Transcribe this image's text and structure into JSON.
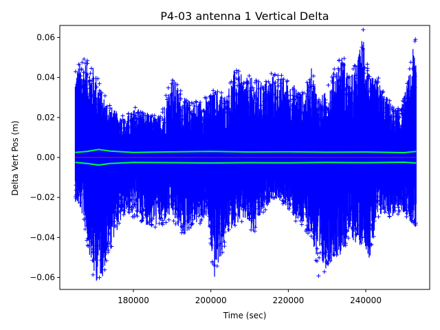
{
  "chart_data": {
    "type": "scatter",
    "title": "P4-03 antenna 1 Vertical Delta",
    "xlabel": "Time (sec)",
    "ylabel": "Delta Vert Pos (m)",
    "xlim": [
      161000,
      256500
    ],
    "ylim": [
      -0.066,
      0.066
    ],
    "x_ticks": [
      {
        "value": 180000,
        "label": "180000"
      },
      {
        "value": 200000,
        "label": "200000"
      },
      {
        "value": 220000,
        "label": "220000"
      },
      {
        "value": 240000,
        "label": "240000"
      }
    ],
    "y_ticks": [
      {
        "value": -0.06,
        "label": "−0.06"
      },
      {
        "value": -0.04,
        "label": "−0.04"
      },
      {
        "value": -0.02,
        "label": "−0.02"
      },
      {
        "value": 0.0,
        "label": "0.00"
      },
      {
        "value": 0.02,
        "label": "0.02"
      },
      {
        "value": 0.04,
        "label": "0.04"
      },
      {
        "value": 0.06,
        "label": "0.06"
      }
    ],
    "grid": false,
    "legend": "none",
    "x_range_of_data": [
      165000,
      253000
    ],
    "envelope": [
      {
        "x": 165000,
        "upper": 0.045,
        "lower": -0.022
      },
      {
        "x": 167000,
        "upper": 0.05,
        "lower": -0.03
      },
      {
        "x": 170000,
        "upper": 0.045,
        "lower": -0.063
      },
      {
        "x": 172000,
        "upper": 0.032,
        "lower": -0.06
      },
      {
        "x": 175000,
        "upper": 0.024,
        "lower": -0.04
      },
      {
        "x": 178000,
        "upper": 0.02,
        "lower": -0.028
      },
      {
        "x": 181000,
        "upper": 0.026,
        "lower": -0.03
      },
      {
        "x": 184000,
        "upper": 0.022,
        "lower": -0.035
      },
      {
        "x": 187000,
        "upper": 0.02,
        "lower": -0.034
      },
      {
        "x": 190000,
        "upper": 0.042,
        "lower": -0.03
      },
      {
        "x": 193000,
        "upper": 0.03,
        "lower": -0.04
      },
      {
        "x": 196000,
        "upper": 0.028,
        "lower": -0.034
      },
      {
        "x": 199000,
        "upper": 0.03,
        "lower": -0.03
      },
      {
        "x": 201000,
        "upper": 0.034,
        "lower": -0.062
      },
      {
        "x": 204000,
        "upper": 0.032,
        "lower": -0.04
      },
      {
        "x": 206000,
        "upper": 0.044,
        "lower": -0.034
      },
      {
        "x": 209000,
        "upper": 0.04,
        "lower": -0.032
      },
      {
        "x": 211000,
        "upper": 0.04,
        "lower": -0.04
      },
      {
        "x": 213000,
        "upper": 0.038,
        "lower": -0.03
      },
      {
        "x": 216000,
        "upper": 0.042,
        "lower": -0.02
      },
      {
        "x": 219000,
        "upper": 0.04,
        "lower": -0.024
      },
      {
        "x": 222000,
        "upper": 0.036,
        "lower": -0.032
      },
      {
        "x": 224000,
        "upper": 0.032,
        "lower": -0.035
      },
      {
        "x": 226000,
        "upper": 0.045,
        "lower": -0.04
      },
      {
        "x": 228000,
        "upper": 0.03,
        "lower": -0.06
      },
      {
        "x": 230000,
        "upper": 0.034,
        "lower": -0.055
      },
      {
        "x": 232000,
        "upper": 0.045,
        "lower": -0.05
      },
      {
        "x": 234000,
        "upper": 0.052,
        "lower": -0.048
      },
      {
        "x": 236000,
        "upper": 0.04,
        "lower": -0.04
      },
      {
        "x": 238000,
        "upper": 0.05,
        "lower": -0.045
      },
      {
        "x": 239500,
        "upper": 0.066,
        "lower": -0.042
      },
      {
        "x": 241000,
        "upper": 0.04,
        "lower": -0.052
      },
      {
        "x": 243000,
        "upper": 0.04,
        "lower": -0.032
      },
      {
        "x": 245000,
        "upper": 0.032,
        "lower": -0.028
      },
      {
        "x": 247000,
        "upper": 0.026,
        "lower": -0.03
      },
      {
        "x": 249000,
        "upper": 0.024,
        "lower": -0.028
      },
      {
        "x": 251000,
        "upper": 0.04,
        "lower": -0.03
      },
      {
        "x": 252500,
        "upper": 0.058,
        "lower": -0.035
      }
    ],
    "upper_band": {
      "x": [
        165000,
        168000,
        171000,
        174000,
        180000,
        190000,
        200000,
        210000,
        220000,
        230000,
        240000,
        250000,
        253000
      ],
      "y": [
        0.0025,
        0.003,
        0.004,
        0.0032,
        0.0025,
        0.0028,
        0.003,
        0.0027,
        0.0028,
        0.0026,
        0.0027,
        0.0024,
        0.003
      ]
    },
    "lower_band": {
      "x": [
        165000,
        168000,
        171000,
        174000,
        180000,
        190000,
        200000,
        210000,
        220000,
        230000,
        240000,
        250000,
        253000
      ],
      "y": [
        -0.0025,
        -0.003,
        -0.0038,
        -0.003,
        -0.0025,
        -0.0026,
        -0.0028,
        -0.0026,
        -0.0027,
        -0.0025,
        -0.0026,
        -0.0024,
        -0.0028
      ]
    },
    "mean_line": {
      "y": 0.0
    },
    "colors": {
      "points": "#0000ff",
      "band": "#00ff44",
      "mean": "#ff0000",
      "axes": "#000000"
    }
  }
}
